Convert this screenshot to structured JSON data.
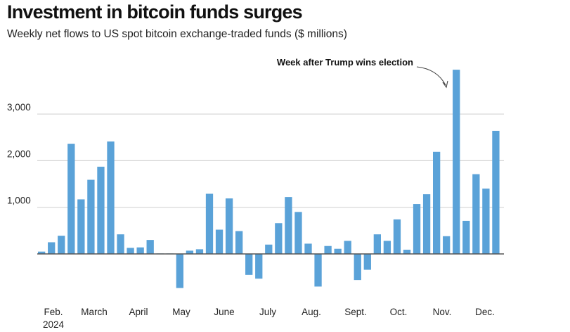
{
  "title": "Investment in bitcoin funds surges",
  "subtitle": "Weekly net flows to US spot bitcoin exchange-traded funds ($ millions)",
  "chart_data": {
    "type": "bar",
    "title": "Investment in bitcoin funds surges",
    "subtitle": "Weekly net flows to US spot bitcoin exchange-traded funds ($ millions)",
    "xlabel": "",
    "ylabel": "",
    "ylim": [
      -1200,
      4000
    ],
    "grid": true,
    "yticks": [
      1000,
      2000,
      3000
    ],
    "ytick_labels": [
      "1,000",
      "2,000",
      "3,000"
    ],
    "xtick_labels": [
      "Feb.",
      "March",
      "April",
      "May",
      "June",
      "July",
      "Aug.",
      "Sept.",
      "Oct.",
      "Nov.",
      "Dec."
    ],
    "year_label": "2024",
    "bar_color": "#5aa2d8",
    "series": [
      {
        "name": "Weekly net flows ($ millions)",
        "values": [
          50,
          250,
          390,
          2360,
          1170,
          1590,
          1870,
          2410,
          420,
          130,
          140,
          300,
          10,
          10,
          -730,
          70,
          100,
          1290,
          520,
          1190,
          490,
          -450,
          -530,
          200,
          660,
          1220,
          900,
          220,
          -700,
          170,
          110,
          280,
          -560,
          -340,
          420,
          280,
          740,
          90,
          1070,
          1280,
          2190,
          380,
          3950,
          710,
          1710,
          1400,
          2640
        ]
      }
    ],
    "annotations": [
      {
        "text": "Week after Trump wins election",
        "target_index": 42
      }
    ]
  }
}
